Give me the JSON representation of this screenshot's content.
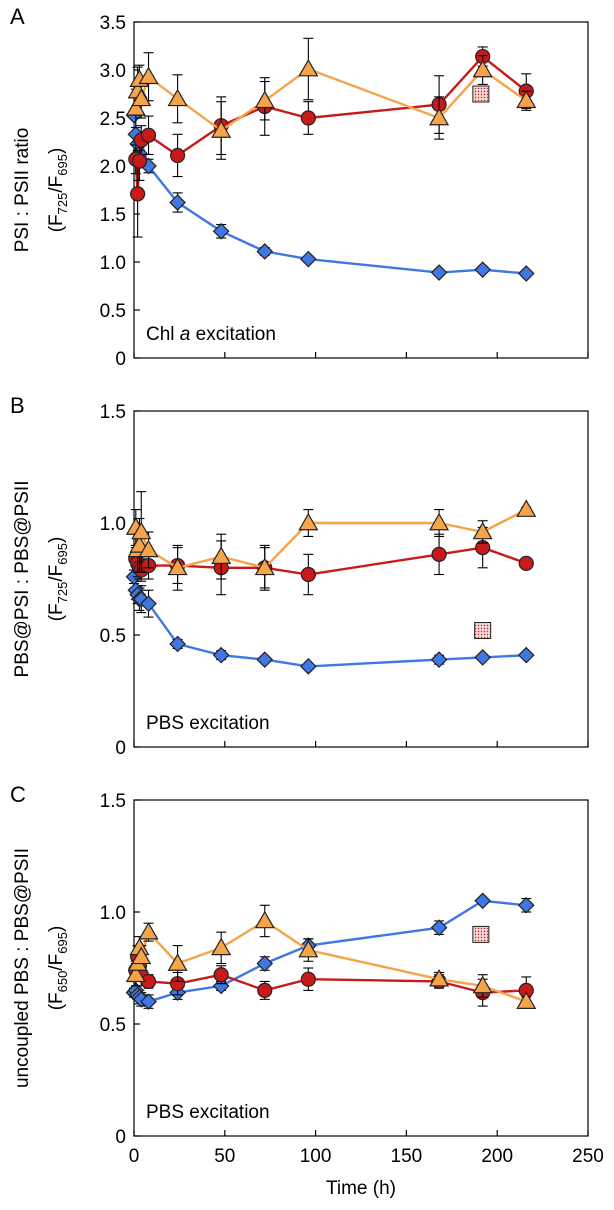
{
  "figure": {
    "x_axis_title": "Time (h)",
    "x_ticks": [
      "0",
      "50",
      "100",
      "150",
      "200",
      "250"
    ],
    "colors": {
      "blue": "#3f78e4",
      "red": "#c81a1a",
      "orange": "#f5a44a",
      "stroke": "#222222"
    }
  },
  "chart_data": [
    {
      "type": "line",
      "panel_letter": "A",
      "ylabel_line1": "PSI : PSII ratio",
      "ylabel_line2_main": "(F",
      "ylabel_line2_sub1": "725",
      "ylabel_line2_mid": "/F",
      "ylabel_line2_sub2": "695",
      "ylabel_line2_end": ")",
      "annotation_main": "Chl ",
      "annotation_italic": "a",
      "annotation_tail": " excitation",
      "ylim": [
        0,
        3.5
      ],
      "xlim": [
        0,
        250
      ],
      "y_ticks": [
        "0",
        "0.5",
        "1.0",
        "1.5",
        "2.0",
        "2.5",
        "3.0",
        "3.5"
      ],
      "series": [
        {
          "marker": "diamond",
          "color": "#3f78e4",
          "x": [
            0,
            1,
            2,
            3,
            4,
            8,
            24,
            48,
            72,
            96,
            168,
            192,
            216
          ],
          "y": [
            2.53,
            2.33,
            2.23,
            2.13,
            2.25,
            2.0,
            1.62,
            1.32,
            1.11,
            1.03,
            0.89,
            0.92,
            0.88
          ],
          "err": [
            0,
            0,
            0,
            0,
            0,
            0.07,
            0.1,
            0.07,
            0.04,
            0.03,
            0.03,
            0.03,
            0.02
          ]
        },
        {
          "marker": "circle",
          "color": "#c81a1a",
          "x": [
            1,
            2,
            3,
            4,
            8,
            24,
            48,
            72,
            96,
            168,
            192,
            216
          ],
          "y": [
            2.07,
            1.71,
            2.05,
            2.27,
            2.32,
            2.11,
            2.42,
            2.62,
            2.5,
            2.64,
            3.14,
            2.78
          ],
          "err": [
            0.15,
            0.45,
            0.2,
            0.15,
            0.2,
            0.22,
            0.3,
            0.3,
            0.17,
            0.3,
            0.1,
            0.18
          ]
        },
        {
          "marker": "triangle",
          "color": "#f5a44a",
          "x": [
            1,
            2,
            3,
            4,
            8,
            24,
            48,
            72,
            96,
            168,
            192,
            216
          ],
          "y": [
            2.6,
            2.78,
            2.9,
            2.7,
            2.93,
            2.7,
            2.37,
            2.68,
            3.01,
            2.5,
            3.0,
            2.68
          ],
          "err": [
            0.2,
            0.25,
            0.15,
            0.2,
            0.25,
            0.25,
            0.3,
            0.2,
            0.32,
            0.22,
            0.15,
            0.1
          ]
        }
      ],
      "extra_points": [
        {
          "marker": "dotted-square",
          "x": 191,
          "y": 2.75
        }
      ]
    },
    {
      "type": "line",
      "panel_letter": "B",
      "ylabel_line1": "PBS@PSI : PBS@PSII",
      "ylabel_line2_main": "(F",
      "ylabel_line2_sub1": "725",
      "ylabel_line2_mid": "/F",
      "ylabel_line2_sub2": "695",
      "ylabel_line2_end": ")",
      "annotation_main": "PBS excitation",
      "annotation_italic": "",
      "annotation_tail": "",
      "ylim": [
        0,
        1.5
      ],
      "xlim": [
        0,
        250
      ],
      "y_ticks": [
        "0",
        "0.5",
        "1.0",
        "1.5"
      ],
      "series": [
        {
          "marker": "diamond",
          "color": "#3f78e4",
          "x": [
            0,
            1,
            2,
            3,
            4,
            8,
            24,
            48,
            72,
            96,
            168,
            192,
            216
          ],
          "y": [
            0.76,
            0.7,
            0.68,
            0.66,
            0.66,
            0.64,
            0.46,
            0.41,
            0.39,
            0.36,
            0.39,
            0.4,
            0.41
          ],
          "err": [
            0.03,
            0.04,
            0.04,
            0.05,
            0.06,
            0.06,
            0.02,
            0.02,
            0.01,
            0.01,
            0.02,
            0.01,
            0.01
          ]
        },
        {
          "marker": "circle",
          "color": "#c81a1a",
          "x": [
            1,
            2,
            3,
            4,
            8,
            24,
            48,
            72,
            96,
            168,
            192,
            216
          ],
          "y": [
            0.84,
            0.82,
            0.8,
            0.79,
            0.81,
            0.81,
            0.8,
            0.8,
            0.77,
            0.86,
            0.89,
            0.82
          ],
          "err": [
            0.05,
            0.06,
            0.05,
            0.05,
            0.06,
            0.08,
            0.12,
            0.09,
            0.09,
            0.09,
            0.09,
            0.02
          ]
        },
        {
          "marker": "triangle",
          "color": "#f5a44a",
          "x": [
            1,
            2,
            3,
            4,
            8,
            24,
            48,
            72,
            96,
            168,
            192,
            216
          ],
          "y": [
            0.98,
            0.88,
            0.9,
            0.96,
            0.88,
            0.8,
            0.85,
            0.8,
            1.0,
            1.0,
            0.96,
            1.06
          ],
          "err": [
            0.08,
            0.1,
            0.12,
            0.18,
            0.08,
            0.1,
            0.1,
            0.1,
            0.06,
            0.06,
            0.05,
            0.01
          ]
        }
      ],
      "extra_points": [
        {
          "marker": "dotted-square",
          "x": 192,
          "y": 0.52
        }
      ]
    },
    {
      "type": "line",
      "panel_letter": "C",
      "ylabel_line1": "uncoupled PBS : PBS@PSII",
      "ylabel_line2_main": "(F",
      "ylabel_line2_sub1": "650",
      "ylabel_line2_mid": "/F",
      "ylabel_line2_sub2": "695",
      "ylabel_line2_end": ")",
      "annotation_main": "PBS excitation",
      "annotation_italic": "",
      "annotation_tail": "",
      "ylim": [
        0,
        1.5
      ],
      "xlim": [
        0,
        250
      ],
      "y_ticks": [
        "0",
        "0.5",
        "1.0",
        "1.5"
      ],
      "series": [
        {
          "marker": "diamond",
          "color": "#3f78e4",
          "x": [
            0,
            1,
            2,
            3,
            4,
            8,
            24,
            48,
            72,
            96,
            168,
            192,
            216
          ],
          "y": [
            0.64,
            0.65,
            0.63,
            0.62,
            0.61,
            0.6,
            0.64,
            0.67,
            0.77,
            0.85,
            0.93,
            1.05,
            1.03
          ],
          "err": [
            0.02,
            0.02,
            0.02,
            0.03,
            0.03,
            0.03,
            0.03,
            0.02,
            0.03,
            0.03,
            0.03,
            0.01,
            0.03
          ]
        },
        {
          "marker": "circle",
          "color": "#c81a1a",
          "x": [
            1,
            2,
            3,
            4,
            8,
            24,
            48,
            72,
            96,
            168,
            192,
            216
          ],
          "y": [
            0.74,
            0.8,
            0.76,
            0.72,
            0.69,
            0.68,
            0.72,
            0.65,
            0.7,
            0.69,
            0.64,
            0.65
          ],
          "err": [
            0.04,
            0.05,
            0.05,
            0.05,
            0.03,
            0.05,
            0.04,
            0.04,
            0.05,
            0.03,
            0.06,
            0.06
          ]
        },
        {
          "marker": "triangle",
          "color": "#f5a44a",
          "x": [
            1,
            2,
            3,
            4,
            8,
            24,
            48,
            72,
            96,
            168,
            192,
            216
          ],
          "y": [
            0.72,
            0.77,
            0.84,
            0.8,
            0.91,
            0.77,
            0.84,
            0.96,
            0.83,
            0.7,
            0.67,
            0.6
          ],
          "err": [
            0.05,
            0.06,
            0.05,
            0.05,
            0.04,
            0.08,
            0.07,
            0.07,
            0.05,
            0.03,
            0.05,
            0.02
          ]
        }
      ],
      "extra_points": [
        {
          "marker": "dotted-square",
          "x": 191,
          "y": 0.9
        }
      ]
    }
  ]
}
